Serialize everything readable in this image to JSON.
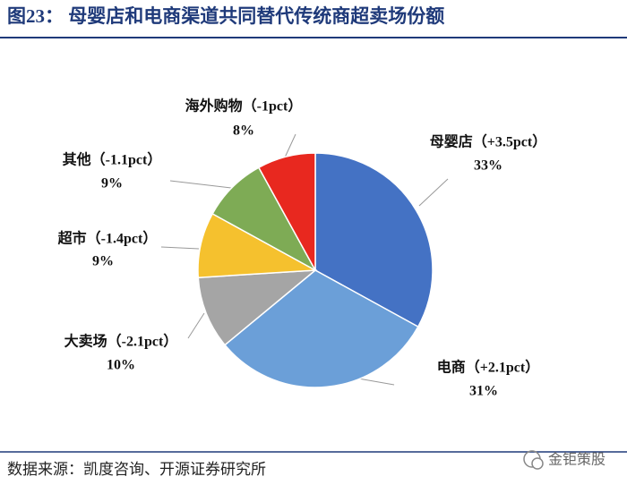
{
  "chart_data": {
    "type": "pie",
    "title": "图23：  母婴店和电商渠道共同替代传统商超卖场份额",
    "categories": [
      "母婴店（+3.5pct）",
      "电商（+2.1pct）",
      "大卖场（-2.1pct）",
      "超市（-1.4pct）",
      "其他（-1.1pct）",
      "海外购物（-1pct）"
    ],
    "values": [
      33,
      31,
      10,
      9,
      9,
      8
    ],
    "value_labels": [
      "33%",
      "31%",
      "10%",
      "9%",
      "9%",
      "8%"
    ],
    "colors": [
      "#4472c4",
      "#6b9fd8",
      "#a5a5a5",
      "#f5c12e",
      "#7eab55",
      "#e8281f"
    ],
    "source": "数据来源：凯度咨询、开源证券研究所",
    "watermark": "金钜策股"
  }
}
